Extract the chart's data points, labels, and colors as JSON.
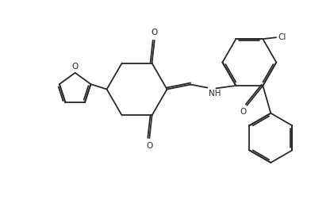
{
  "bg_color": "#ffffff",
  "line_color": "#2a2a2a",
  "line_width": 1.3,
  "dbo": 0.06,
  "figsize": [
    4.21,
    2.61
  ],
  "dpi": 100,
  "font_size": 7.5,
  "xlim": [
    0.0,
    10.5
  ],
  "ylim": [
    0.0,
    6.5
  ]
}
